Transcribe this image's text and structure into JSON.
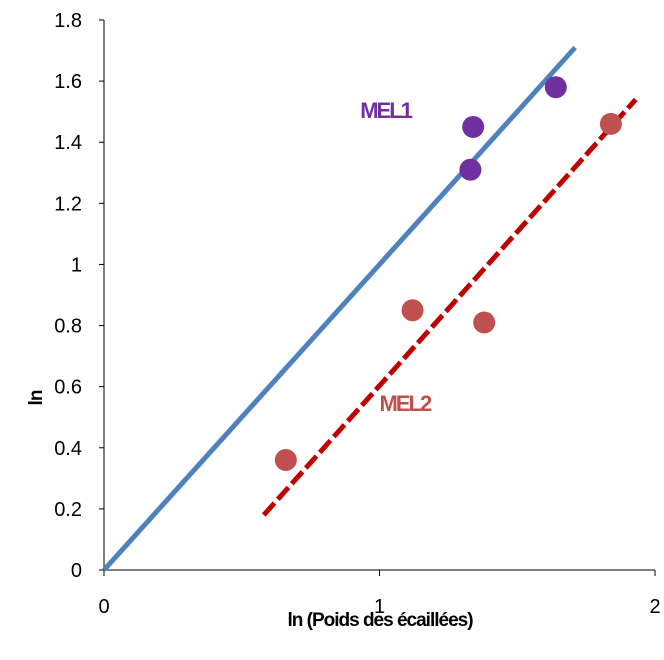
{
  "chart_data": {
    "type": "scatter",
    "xlabel": "ln (Poids des écaillées)",
    "ylabel": "ln",
    "xlim": [
      0,
      2
    ],
    "ylim": [
      0,
      1.8
    ],
    "x_ticks": [
      "0",
      "1",
      "2"
    ],
    "y_ticks": [
      "0",
      "0.2",
      "0.4",
      "0.6",
      "0.8",
      "1",
      "1.2",
      "1.4",
      "1.6",
      "1.8"
    ],
    "grid": false,
    "series": [
      {
        "name": "MEL1",
        "color": "#7030a0",
        "points": [
          [
            1.33,
            1.31
          ],
          [
            1.34,
            1.45
          ],
          [
            1.64,
            1.58
          ]
        ],
        "fit_line": {
          "x": [
            0,
            1.71
          ],
          "y": [
            0,
            1.71
          ],
          "color": "#4f81bd",
          "style": "solid"
        }
      },
      {
        "name": "MEL2",
        "color": "#c0504d",
        "points": [
          [
            0.66,
            0.36
          ],
          [
            1.12,
            0.85
          ],
          [
            1.38,
            0.81
          ],
          [
            1.84,
            1.46
          ]
        ],
        "fit_line": {
          "x": [
            0.58,
            1.93
          ],
          "y": [
            0.18,
            1.54
          ],
          "color": "#c00000",
          "style": "dashed"
        }
      }
    ]
  }
}
